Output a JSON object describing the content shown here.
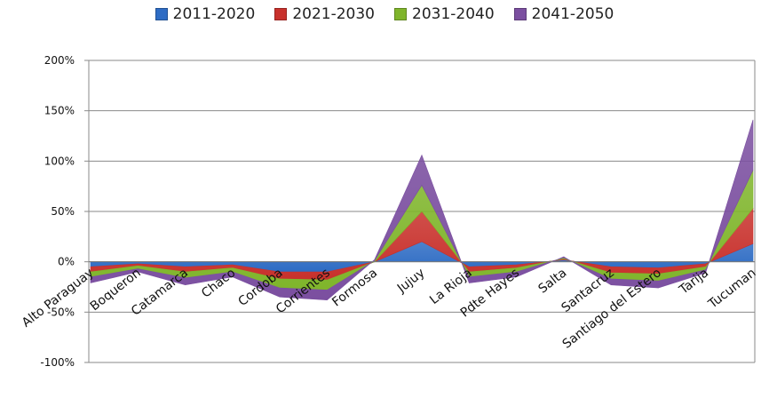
{
  "chart_data": {
    "type": "area",
    "stacked": true,
    "categories": [
      "Alto Paraguay",
      "Boqueron",
      "Catamarca",
      "Chaco",
      "Cordoba",
      "Corrientes",
      "Formosa",
      "Jujuy",
      "La Rioja",
      "Pdte Hayes",
      "Salta",
      "Santacruz",
      "Santiago del Estero",
      "Tarija",
      "Tucuman"
    ],
    "series": [
      {
        "name": "2011-2020",
        "color": "#2e6cc4",
        "values": [
          -5,
          -2,
          -5,
          -3,
          -10,
          -10,
          0,
          20,
          -5,
          -3,
          2,
          -5,
          -6,
          -2,
          18
        ]
      },
      {
        "name": "2021-2030",
        "color": "#c8312c",
        "values": [
          -5,
          -2,
          -5,
          -3,
          -7,
          -8,
          0,
          30,
          -5,
          -3,
          1,
          -6,
          -6,
          -3,
          35
        ]
      },
      {
        "name": "2031-2040",
        "color": "#7fb52b",
        "values": [
          -5,
          -3,
          -6,
          -4,
          -9,
          -10,
          1,
          26,
          -5,
          -4,
          1,
          -6,
          -7,
          -3,
          38
        ]
      },
      {
        "name": "2041-2050",
        "color": "#7b4fa0",
        "values": [
          -6,
          -3,
          -7,
          -5,
          -9,
          -10,
          1,
          30,
          -6,
          -5,
          1,
          -6,
          -7,
          -3,
          50
        ]
      }
    ],
    "yticks": [
      "200%",
      "150%",
      "100%",
      "50%",
      "0%",
      "-50%",
      "-100%"
    ],
    "ylim": [
      -100,
      200
    ],
    "grid": true,
    "legend_position": "top"
  }
}
